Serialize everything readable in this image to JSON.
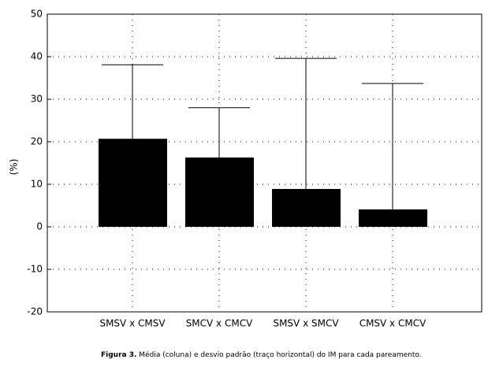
{
  "chart_data": {
    "type": "bar",
    "y_label": "(%)",
    "caption_label": "Figura 3.",
    "caption": "Média (coluna) e desvio padrão (traço horizontal) do IM para cada pareamento.",
    "categories": [
      "SMSV x CMSV",
      "SMCV x CMCV",
      "SMSV x SMCV",
      "CMSV x CMCV"
    ],
    "values": [
      20.7,
      16.3,
      8.9,
      4.1
    ],
    "errors": [
      17.4,
      11.7,
      30.7,
      29.6
    ],
    "color": "#000000",
    "ylim": [
      -20,
      50
    ],
    "yticks": [
      -20,
      -10,
      0,
      10,
      20,
      30,
      40,
      50
    ],
    "grid": true
  }
}
